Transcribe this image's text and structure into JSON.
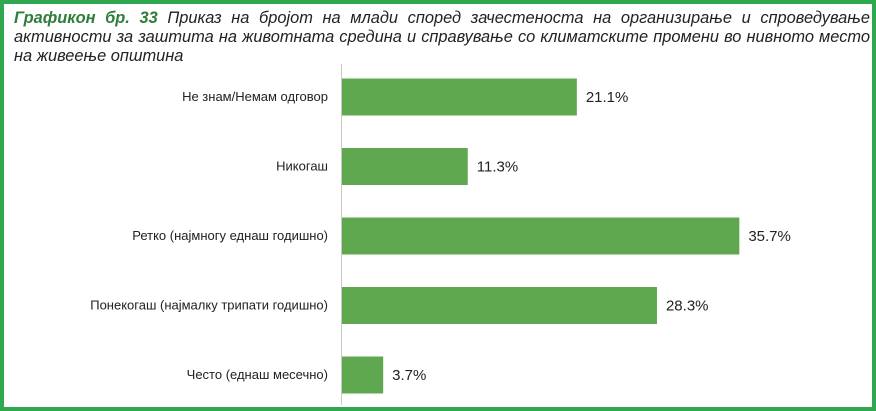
{
  "title": {
    "lead": "Графикон бр. 33",
    "text": "Приказ на бројот на млади според зачестеноста на организирање и спроведување активности за заштита на животната средина и справување со климатските промени во нивното место на живеење општина"
  },
  "colors": {
    "bar": "#5fa850",
    "frame": "#2fa84f",
    "title_lead": "#2e7d3a"
  },
  "chart_data": {
    "type": "bar",
    "orientation": "horizontal",
    "categories": [
      "Не знам/Немам одговор",
      "Никогаш",
      "Ретко (најмногу еднаш годишно)",
      "Понекогаш (најмалку трипати годишно)",
      "Често (еднаш месечно)"
    ],
    "values": [
      21.1,
      11.3,
      35.7,
      28.3,
      3.7
    ],
    "value_labels": [
      "21.1%",
      "11.3%",
      "35.7%",
      "28.3%",
      "3.7%"
    ],
    "unit": "%",
    "xlim": [
      0,
      40
    ],
    "grid": false,
    "legend": "none"
  }
}
